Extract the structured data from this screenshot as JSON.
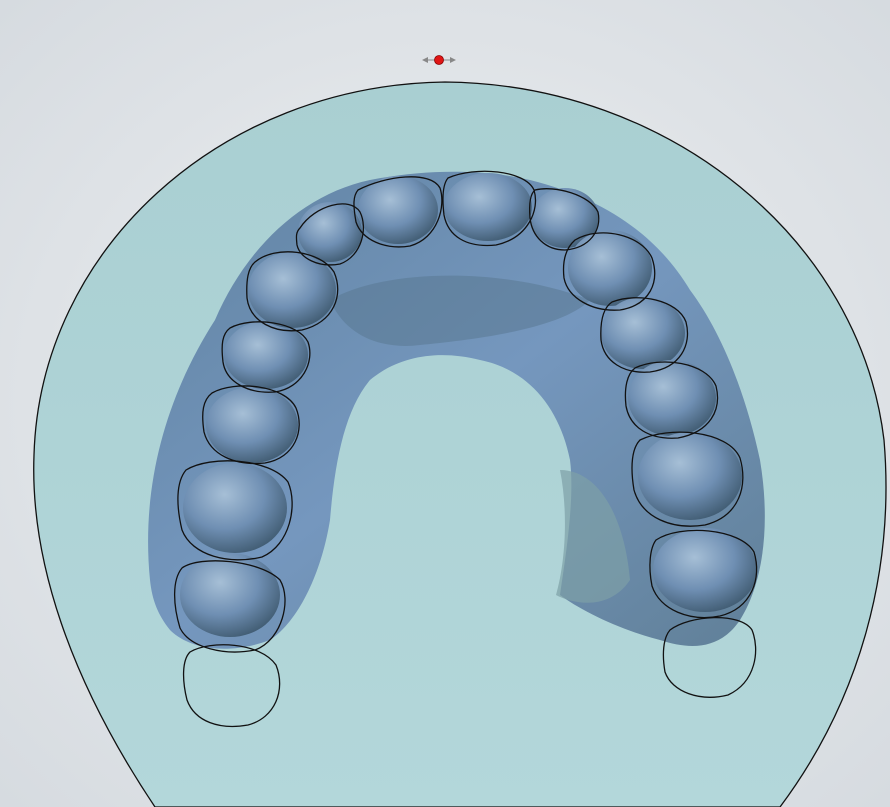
{
  "viewer": {
    "background_color": "#dfe3e7",
    "disk_color": "#aed3d6",
    "model_color": "#6f8fb3",
    "outline_color": "#111111",
    "handle_color": "#e01515"
  },
  "icons": {
    "rotate_handle": "left-right-arrow-icon"
  },
  "tooth_outlines": [
    {
      "name": "molar-right-3"
    },
    {
      "name": "molar-right-2"
    },
    {
      "name": "molar-right-1"
    },
    {
      "name": "premolar-right-2"
    },
    {
      "name": "premolar-right-1"
    },
    {
      "name": "canine-right"
    },
    {
      "name": "incisor-right-2"
    },
    {
      "name": "incisor-right-1"
    },
    {
      "name": "incisor-left-1"
    },
    {
      "name": "incisor-left-2"
    },
    {
      "name": "canine-left"
    },
    {
      "name": "premolar-left-1"
    },
    {
      "name": "premolar-left-2"
    },
    {
      "name": "molar-left-1"
    },
    {
      "name": "molar-left-2"
    },
    {
      "name": "molar-left-3"
    }
  ]
}
